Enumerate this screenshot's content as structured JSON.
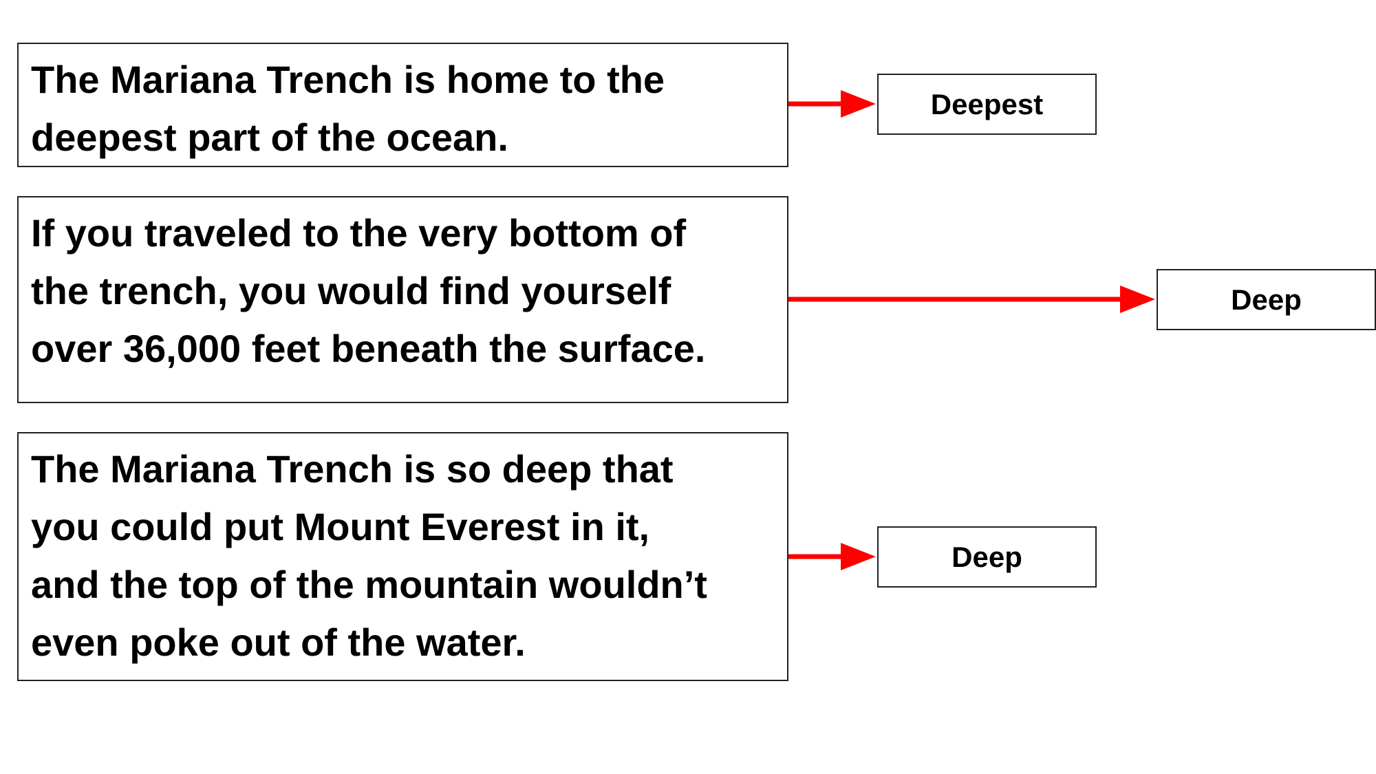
{
  "statements": [
    {
      "text": "The Mariana Trench is home to the\ndeepest part of the ocean."
    },
    {
      "text": "If you traveled to the very bottom of\nthe trench, you would find yourself\nover 36,000 feet beneath the surface."
    },
    {
      "text": "The Mariana Trench is so deep that\nyou could put Mount Everest in it,\nand the top of the mountain wouldn’t\neven poke out of the water."
    }
  ],
  "labels": [
    {
      "text": "Deepest"
    },
    {
      "text": "Deep"
    },
    {
      "text": "Deep"
    }
  ],
  "colors": {
    "arrow": "#ff0000",
    "border": "#222222",
    "text": "#000000",
    "background": "#ffffff"
  }
}
